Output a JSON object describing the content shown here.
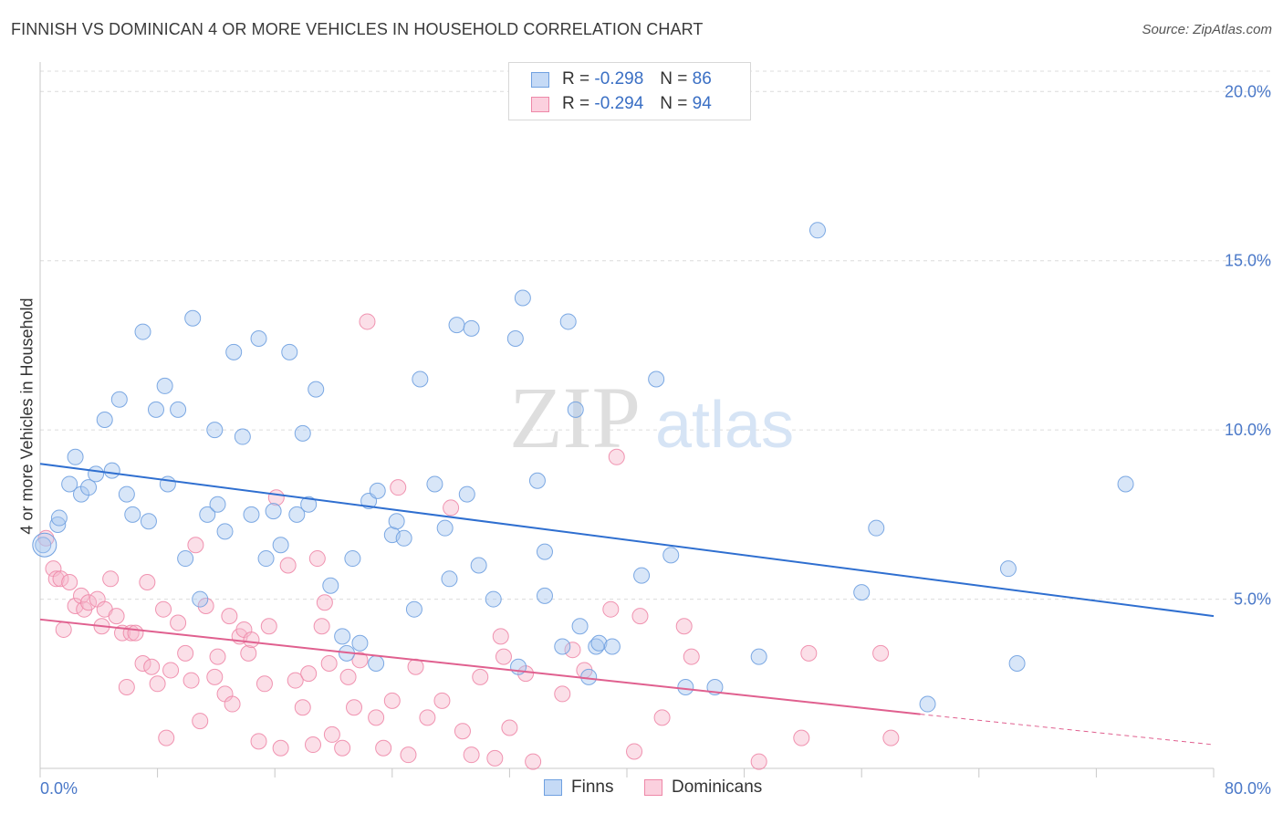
{
  "header": {
    "title": "FINNISH VS DOMINICAN 4 OR MORE VEHICLES IN HOUSEHOLD CORRELATION CHART",
    "source": "Source: ZipAtlas.com"
  },
  "watermark": {
    "zip": "ZIP",
    "atlas": "atlas"
  },
  "legend": {
    "rows": [
      {
        "r_label": "R = ",
        "r_value": "-0.298",
        "n_label": "N = ",
        "n_value": "86",
        "color": "#a9c8f0"
      },
      {
        "r_label": "R = ",
        "r_value": "-0.294",
        "n_label": "N = ",
        "n_value": "94",
        "color": "#f7b8cc"
      }
    ]
  },
  "bottom_legend": {
    "finns": "Finns",
    "dominicans": "Dominicans"
  },
  "chart_data": {
    "type": "scatter",
    "title": "FINNISH VS DOMINICAN 4 OR MORE VEHICLES IN HOUSEHOLD CORRELATION CHART",
    "ylabel": "4 or more Vehicles in Household",
    "xlabel": "",
    "xlim": [
      0,
      80
    ],
    "ylim": [
      0,
      20.6
    ],
    "x_tick_labels": [
      "0.0%",
      "80.0%"
    ],
    "y_tick_labels": [
      "5.0%",
      "10.0%",
      "15.0%",
      "20.0%"
    ],
    "y_ticks": [
      5,
      10,
      15,
      20
    ],
    "grid": true,
    "colors": {
      "finns": "#6fa0e0",
      "dominicans": "#ee88a8",
      "finns_line": "#2f6fd0",
      "dominicans_line": "#e0608f"
    },
    "series": [
      {
        "name": "Finns",
        "trend": {
          "x0": 0,
          "y0": 9.0,
          "x1": 80,
          "y1": 4.5
        },
        "points": [
          [
            0.2,
            6.6
          ],
          [
            1.2,
            7.2
          ],
          [
            1.3,
            7.4
          ],
          [
            2.0,
            8.4
          ],
          [
            2.4,
            9.2
          ],
          [
            2.8,
            8.1
          ],
          [
            3.3,
            8.3
          ],
          [
            3.8,
            8.7
          ],
          [
            4.4,
            10.3
          ],
          [
            4.9,
            8.8
          ],
          [
            5.4,
            10.9
          ],
          [
            5.9,
            8.1
          ],
          [
            6.3,
            7.5
          ],
          [
            7.0,
            12.9
          ],
          [
            7.4,
            7.3
          ],
          [
            7.9,
            10.6
          ],
          [
            8.5,
            11.3
          ],
          [
            8.7,
            8.4
          ],
          [
            9.4,
            10.6
          ],
          [
            9.9,
            6.2
          ],
          [
            10.4,
            13.3
          ],
          [
            10.9,
            5.0
          ],
          [
            11.4,
            7.5
          ],
          [
            11.9,
            10.0
          ],
          [
            12.1,
            7.8
          ],
          [
            12.6,
            7.0
          ],
          [
            13.2,
            12.3
          ],
          [
            13.8,
            9.8
          ],
          [
            14.4,
            7.5
          ],
          [
            14.9,
            12.7
          ],
          [
            15.4,
            6.2
          ],
          [
            15.9,
            7.6
          ],
          [
            16.4,
            6.6
          ],
          [
            17.0,
            12.3
          ],
          [
            17.5,
            7.5
          ],
          [
            17.9,
            9.9
          ],
          [
            18.3,
            7.8
          ],
          [
            18.8,
            11.2
          ],
          [
            19.8,
            5.4
          ],
          [
            20.6,
            3.9
          ],
          [
            20.9,
            3.4
          ],
          [
            21.3,
            6.2
          ],
          [
            21.8,
            3.7
          ],
          [
            22.4,
            7.9
          ],
          [
            22.9,
            3.1
          ],
          [
            23.0,
            8.2
          ],
          [
            24.0,
            6.9
          ],
          [
            24.3,
            7.3
          ],
          [
            24.8,
            6.8
          ],
          [
            25.5,
            4.7
          ],
          [
            25.9,
            11.5
          ],
          [
            26.9,
            8.4
          ],
          [
            27.6,
            7.1
          ],
          [
            27.9,
            5.6
          ],
          [
            28.4,
            13.1
          ],
          [
            29.1,
            8.1
          ],
          [
            29.4,
            13.0
          ],
          [
            29.9,
            6.0
          ],
          [
            30.9,
            5.0
          ],
          [
            32.4,
            12.7
          ],
          [
            32.6,
            3.0
          ],
          [
            32.9,
            13.9
          ],
          [
            33.9,
            8.5
          ],
          [
            34.4,
            6.4
          ],
          [
            34.4,
            5.1
          ],
          [
            35.6,
            3.6
          ],
          [
            36.0,
            13.2
          ],
          [
            36.5,
            10.6
          ],
          [
            36.8,
            4.2
          ],
          [
            37.4,
            2.7
          ],
          [
            37.9,
            3.6
          ],
          [
            38.1,
            3.7
          ],
          [
            39.0,
            3.6
          ],
          [
            41.0,
            5.7
          ],
          [
            42.0,
            11.5
          ],
          [
            43.0,
            6.3
          ],
          [
            44.0,
            2.4
          ],
          [
            46.0,
            2.4
          ],
          [
            49.0,
            3.3
          ],
          [
            53.0,
            15.9
          ],
          [
            56.0,
            5.2
          ],
          [
            57.0,
            7.1
          ],
          [
            60.5,
            1.9
          ],
          [
            66.0,
            5.9
          ],
          [
            66.6,
            3.1
          ],
          [
            74.0,
            8.4
          ]
        ]
      },
      {
        "name": "Dominicans",
        "trend": {
          "x0": 0,
          "y0": 4.4,
          "x1": 60,
          "y1": 1.6,
          "dash_to_x": 80,
          "dash_to_y": 0.7
        },
        "points": [
          [
            0.4,
            6.8
          ],
          [
            0.9,
            5.9
          ],
          [
            1.1,
            5.6
          ],
          [
            1.4,
            5.6
          ],
          [
            1.6,
            4.1
          ],
          [
            2.0,
            5.5
          ],
          [
            2.4,
            4.8
          ],
          [
            2.8,
            5.1
          ],
          [
            3.0,
            4.7
          ],
          [
            3.3,
            4.9
          ],
          [
            3.9,
            5.0
          ],
          [
            4.2,
            4.2
          ],
          [
            4.4,
            4.7
          ],
          [
            4.8,
            5.6
          ],
          [
            5.2,
            4.5
          ],
          [
            5.6,
            4.0
          ],
          [
            5.9,
            2.4
          ],
          [
            6.2,
            4.0
          ],
          [
            6.5,
            4.0
          ],
          [
            7.0,
            3.1
          ],
          [
            7.3,
            5.5
          ],
          [
            7.6,
            3.0
          ],
          [
            8.0,
            2.5
          ],
          [
            8.4,
            4.7
          ],
          [
            8.6,
            0.9
          ],
          [
            8.9,
            2.9
          ],
          [
            9.4,
            4.3
          ],
          [
            9.9,
            3.4
          ],
          [
            10.3,
            2.6
          ],
          [
            10.6,
            6.6
          ],
          [
            10.9,
            1.4
          ],
          [
            11.3,
            4.8
          ],
          [
            11.9,
            2.7
          ],
          [
            12.1,
            3.3
          ],
          [
            12.6,
            2.2
          ],
          [
            12.9,
            4.5
          ],
          [
            13.1,
            1.9
          ],
          [
            13.6,
            3.9
          ],
          [
            13.9,
            4.1
          ],
          [
            14.2,
            3.4
          ],
          [
            14.4,
            3.8
          ],
          [
            14.9,
            0.8
          ],
          [
            15.3,
            2.5
          ],
          [
            15.6,
            4.2
          ],
          [
            16.1,
            8.0
          ],
          [
            16.4,
            0.6
          ],
          [
            16.9,
            6.0
          ],
          [
            17.4,
            2.6
          ],
          [
            17.9,
            1.8
          ],
          [
            18.3,
            2.8
          ],
          [
            18.6,
            0.7
          ],
          [
            18.9,
            6.2
          ],
          [
            19.2,
            4.2
          ],
          [
            19.4,
            4.9
          ],
          [
            19.7,
            3.1
          ],
          [
            19.9,
            1.0
          ],
          [
            20.6,
            0.6
          ],
          [
            21.0,
            2.7
          ],
          [
            21.4,
            1.8
          ],
          [
            21.8,
            3.2
          ],
          [
            22.3,
            13.2
          ],
          [
            22.9,
            1.5
          ],
          [
            23.4,
            0.6
          ],
          [
            24.0,
            2.0
          ],
          [
            24.4,
            8.3
          ],
          [
            25.1,
            0.4
          ],
          [
            25.6,
            3.0
          ],
          [
            26.4,
            1.5
          ],
          [
            27.4,
            2.0
          ],
          [
            28.0,
            7.7
          ],
          [
            28.8,
            1.1
          ],
          [
            29.4,
            0.4
          ],
          [
            30.0,
            2.7
          ],
          [
            31.0,
            0.3
          ],
          [
            31.4,
            3.9
          ],
          [
            31.6,
            3.3
          ],
          [
            32.0,
            1.2
          ],
          [
            33.1,
            2.8
          ],
          [
            33.6,
            0.2
          ],
          [
            35.6,
            2.2
          ],
          [
            36.3,
            3.5
          ],
          [
            37.1,
            2.9
          ],
          [
            38.9,
            4.7
          ],
          [
            39.3,
            9.2
          ],
          [
            40.5,
            0.5
          ],
          [
            40.9,
            4.5
          ],
          [
            42.4,
            1.5
          ],
          [
            43.9,
            4.2
          ],
          [
            44.4,
            3.3
          ],
          [
            49.0,
            0.2
          ],
          [
            51.9,
            0.9
          ],
          [
            52.4,
            3.4
          ],
          [
            57.3,
            3.4
          ],
          [
            58.0,
            0.9
          ]
        ]
      }
    ]
  }
}
